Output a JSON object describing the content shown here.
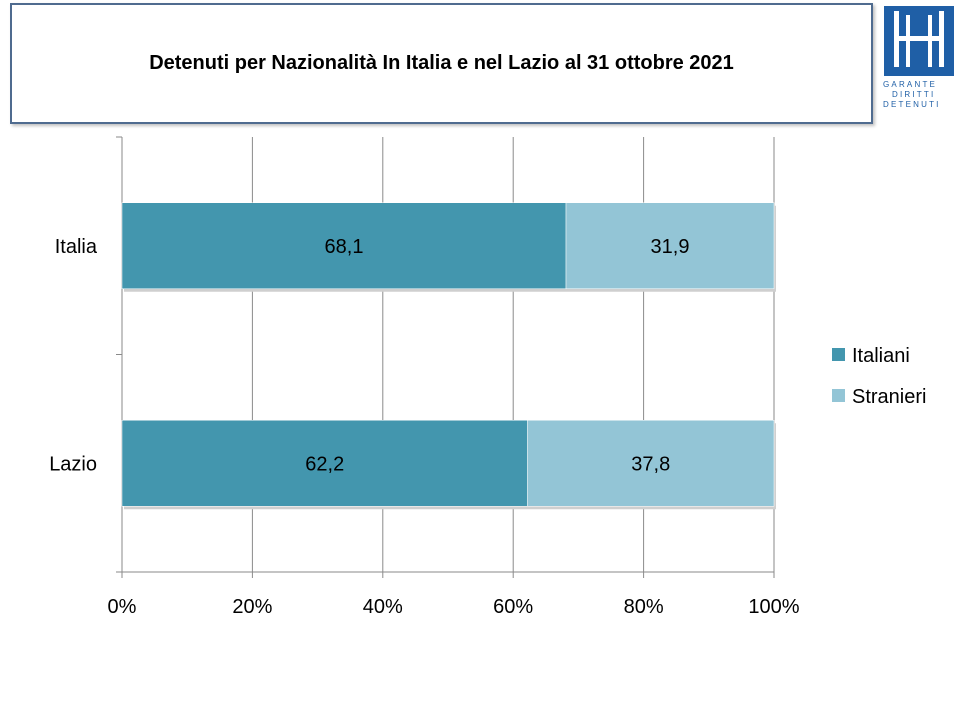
{
  "chart_data": {
    "type": "bar",
    "orientation": "horizontal",
    "stacked": "percent",
    "title": "Detenuti per Nazionalità In Italia e nel Lazio al 31 ottobre 2021",
    "categories": [
      "Italia",
      "Lazio"
    ],
    "series": [
      {
        "name": "Italiani",
        "values": [
          68.1,
          62.2
        ],
        "color": "#4396ae",
        "labels": [
          "68,1",
          "62,2"
        ]
      },
      {
        "name": "Stranieri",
        "values": [
          31.9,
          37.8
        ],
        "color": "#93c5d6",
        "labels": [
          "31,9",
          "37,8"
        ]
      }
    ],
    "xlim": [
      0,
      100
    ],
    "xticks": [
      "0%",
      "20%",
      "40%",
      "60%",
      "80%",
      "100%"
    ],
    "grid": true,
    "legend_position": "right"
  },
  "logo": {
    "name": "logo-icon",
    "text": "GARANTE DIRITTI DETENUTI",
    "color": "#1f5fa6"
  }
}
